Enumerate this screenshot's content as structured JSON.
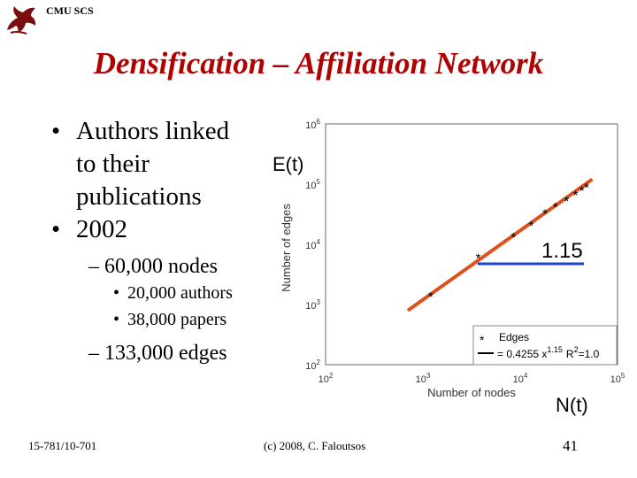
{
  "header": {
    "org": "CMU SCS",
    "logo_icon": "griffin-icon"
  },
  "title": "Densification – Affiliation Network",
  "bullets": {
    "b1_lines": [
      "Authors linked",
      "to their",
      "publications"
    ],
    "b2": "2002",
    "sub1": "– 60,000 nodes",
    "sub1_items": [
      "20,000 authors",
      "38,000 papers"
    ],
    "sub2": "– 133,000 edges",
    "bullet_glyph": "•"
  },
  "chart_data": {
    "type": "scatter",
    "xlabel": "Number of nodes",
    "ylabel": "Number of edges",
    "x_scale": "log",
    "y_scale": "log",
    "xlim": [
      100,
      100000
    ],
    "ylim": [
      100,
      1000000
    ],
    "x_ticks": [
      {
        "base": "10",
        "exp": "2"
      },
      {
        "base": "10",
        "exp": "3"
      },
      {
        "base": "10",
        "exp": "4"
      },
      {
        "base": "10",
        "exp": "5"
      }
    ],
    "y_ticks": [
      {
        "base": "10",
        "exp": "2"
      },
      {
        "base": "10",
        "exp": "3"
      },
      {
        "base": "10",
        "exp": "4"
      },
      {
        "base": "10",
        "exp": "5"
      },
      {
        "base": "10",
        "exp": "6"
      }
    ],
    "series": [
      {
        "name": "Edges",
        "marker": "*",
        "x": [
          1200,
          3700,
          8500,
          13000,
          18000,
          23000,
          30000,
          37000,
          43000,
          48000
        ],
        "y": [
          1400,
          6100,
          13500,
          21000,
          33000,
          43000,
          54000,
          68000,
          80000,
          90000
        ]
      }
    ],
    "fit": {
      "label": "= 0.4255 x",
      "exponent": "1.15",
      "r2": "R",
      "r2_exp": "2",
      "r2_value": "=1.0",
      "coef": 0.4255,
      "power": 1.15
    },
    "annotations": {
      "et": "E(t)",
      "slope": "1.15",
      "nt": "N(t)"
    },
    "colors": {
      "fit_line": "#e0501c",
      "slope_line": "#1f3fd8",
      "marker": "#000000"
    }
  },
  "footer": {
    "left": "15-781/10-701",
    "center": "(c) 2008, C. Faloutsos",
    "page": "41"
  }
}
